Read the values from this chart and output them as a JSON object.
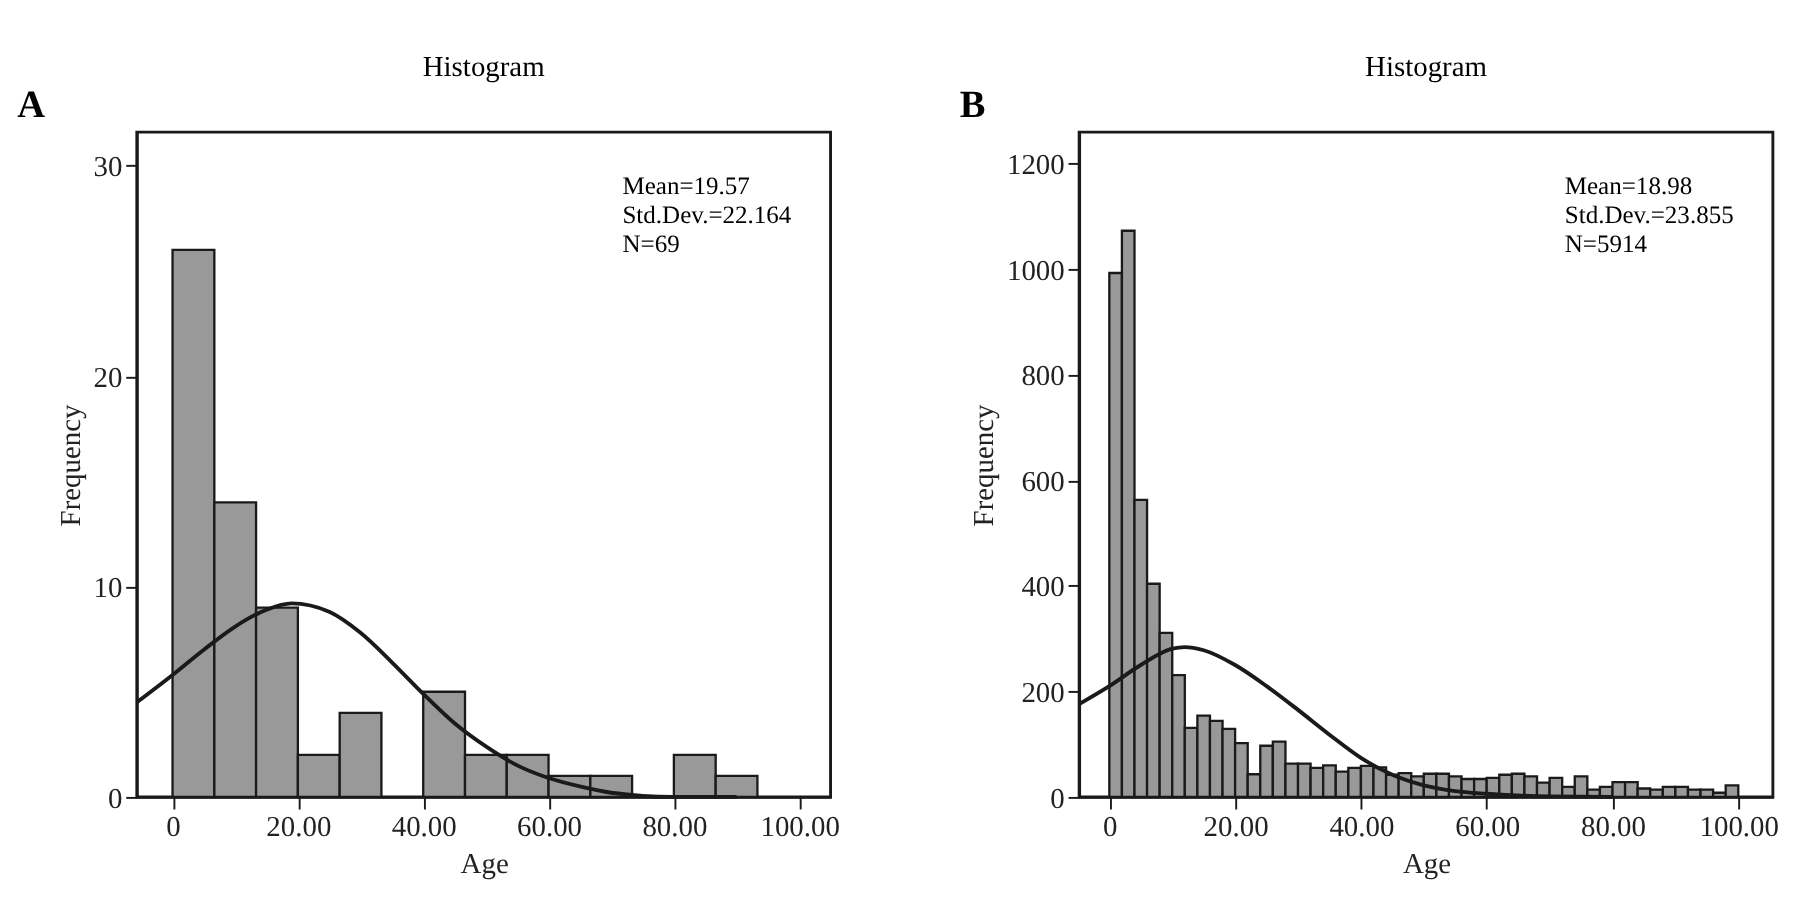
{
  "chart_data": [
    {
      "type": "histogram",
      "title": "Histogram",
      "xlabel": "Age",
      "ylabel": "Frequency",
      "annotations": [
        "A",
        "Mean=19.57",
        "Std.Dev.=22.164",
        "N=69"
      ],
      "bins": [
        0,
        6.67,
        13.33,
        20,
        26.67,
        33.33,
        40,
        46.67,
        53.33,
        60,
        66.67,
        73.33,
        80,
        86.67,
        93.33
      ],
      "values": [
        26,
        14,
        9,
        2,
        4,
        0,
        5,
        2,
        2,
        1,
        1,
        0,
        2,
        1
      ],
      "color": "#999999",
      "series": [
        {
          "type": "line",
          "color": "#1a1a1a",
          "x": [
            -5.7,
            0,
            5,
            10,
            15,
            19,
            25,
            30,
            35,
            40,
            45,
            50,
            55,
            60,
            65,
            70,
            80,
            90
          ],
          "values": [
            4.5,
            5.8,
            7.0,
            8.1,
            8.9,
            9.2,
            8.8,
            7.8,
            6.4,
            4.9,
            3.5,
            2.4,
            1.5,
            0.9,
            0.5,
            0.2,
            0,
            0
          ]
        }
      ],
      "xlim": [
        -5.7,
        105
      ],
      "ylim": [
        0,
        31.6
      ],
      "xticks": [
        0,
        {
          "value": 20,
          "label": "20.00"
        },
        {
          "value": 40,
          "label": "40.00"
        },
        {
          "value": 60,
          "label": "60.00"
        },
        {
          "value": 80,
          "label": "80.00"
        },
        {
          "value": 100,
          "label": "100.00"
        }
      ],
      "yticks": [
        0,
        10,
        20,
        30
      ],
      "grid": false
    },
    {
      "type": "histogram",
      "title": "Histogram",
      "xlabel": "Age",
      "ylabel": "Frequency",
      "annotations": [
        "B",
        "Mean=18.98",
        "Std.Dev.=23.855",
        "N=5914"
      ],
      "bins": [
        0,
        2,
        4,
        6,
        8,
        10,
        12,
        14,
        16,
        18,
        20,
        22,
        24,
        26,
        28,
        30,
        32,
        34,
        36,
        38,
        40,
        42,
        44,
        46,
        48,
        50,
        52,
        54,
        56,
        58,
        60,
        62,
        64,
        66,
        68,
        70,
        72,
        74,
        76,
        78,
        80,
        82,
        84,
        86,
        88,
        90,
        92,
        94,
        96,
        98,
        100
      ],
      "values": [
        993,
        1073,
        563,
        404,
        311,
        231,
        131,
        154,
        144,
        129,
        102,
        43,
        97,
        105,
        63,
        63,
        55,
        60,
        48,
        55,
        59,
        56,
        42,
        45,
        39,
        44,
        44,
        39,
        34,
        34,
        36,
        42,
        44,
        39,
        27,
        36,
        19,
        39,
        14,
        19,
        28,
        28,
        16,
        14,
        19,
        19,
        14,
        14,
        8,
        22
      ],
      "color": "#999999",
      "series": [
        {
          "type": "line",
          "color": "#1a1a1a",
          "x": [
            -4.8,
            0,
            5,
            10,
            12,
            15,
            20,
            25,
            30,
            35,
            40,
            45,
            50,
            55,
            60,
            70,
            80
          ],
          "values": [
            176,
            210,
            250,
            281,
            284,
            278,
            250,
            210,
            165,
            118,
            74,
            42,
            22,
            11,
            6,
            1,
            0
          ]
        }
      ],
      "xlim": [
        -4.8,
        105.5
      ],
      "ylim": [
        0,
        1260
      ],
      "xticks": [
        0,
        {
          "value": 20,
          "label": "20.00"
        },
        {
          "value": 40,
          "label": "40.00"
        },
        {
          "value": 60,
          "label": "60.00"
        },
        {
          "value": 80,
          "label": "80.00"
        },
        {
          "value": 100,
          "label": "100.00"
        }
      ],
      "yticks": [
        0,
        200,
        400,
        600,
        800,
        1000,
        1200
      ],
      "grid": false
    }
  ]
}
